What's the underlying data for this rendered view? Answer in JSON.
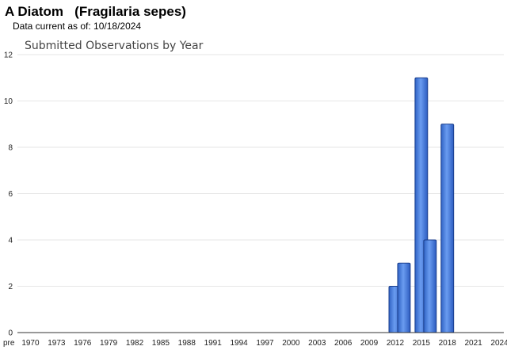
{
  "header": {
    "title": "A Diatom   (Fragilaria sepes)",
    "data_current": "Data current as of: 10/18/2024"
  },
  "chart_data": {
    "type": "bar",
    "title": "Submitted Observations by Year",
    "xlabel": "",
    "ylabel": "",
    "ylim": [
      0,
      12
    ],
    "yticks": [
      0,
      2,
      4,
      6,
      8,
      10,
      12
    ],
    "grid": true,
    "x_tick_labels": [
      "pre",
      "1970",
      "1973",
      "1976",
      "1979",
      "1982",
      "1985",
      "1988",
      "1991",
      "1994",
      "1997",
      "2000",
      "2003",
      "2006",
      "2009",
      "2012",
      "2015",
      "2018",
      "2021",
      "2024"
    ],
    "categories": [
      "pre",
      "1970",
      "1971",
      "1972",
      "1973",
      "1974",
      "1975",
      "1976",
      "1977",
      "1978",
      "1979",
      "1980",
      "1981",
      "1982",
      "1983",
      "1984",
      "1985",
      "1986",
      "1987",
      "1988",
      "1989",
      "1990",
      "1991",
      "1992",
      "1993",
      "1994",
      "1995",
      "1996",
      "1997",
      "1998",
      "1999",
      "2000",
      "2001",
      "2002",
      "2003",
      "2004",
      "2005",
      "2006",
      "2007",
      "2008",
      "2009",
      "2010",
      "2011",
      "2012",
      "2013",
      "2014",
      "2015",
      "2016",
      "2017",
      "2018",
      "2019",
      "2020",
      "2021",
      "2022",
      "2023",
      "2024"
    ],
    "values": [
      0,
      0,
      0,
      0,
      0,
      0,
      0,
      0,
      0,
      0,
      0,
      0,
      0,
      0,
      0,
      0,
      0,
      0,
      0,
      0,
      0,
      0,
      0,
      0,
      0,
      0,
      0,
      0,
      0,
      0,
      0,
      0,
      0,
      0,
      0,
      0,
      0,
      0,
      0,
      0,
      0,
      0,
      0,
      2,
      3,
      0,
      11,
      4,
      0,
      9,
      0,
      0,
      0,
      0,
      0,
      0
    ],
    "bar_color": "#3b76d9",
    "bar_edge_color": "#1a3e8c",
    "grid_color": "#e6e6e6"
  }
}
